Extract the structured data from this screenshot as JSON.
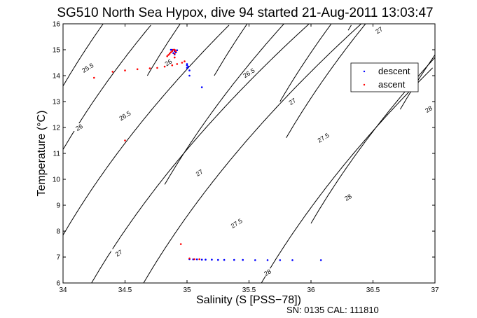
{
  "chart_data": {
    "type": "scatter",
    "title": "SG510 North Sea Hypox, dive 94 started 21-Aug-2011 13:03:47",
    "xlabel": "Salinity (S [PSS−78])",
    "ylabel": "Temperature (°C)",
    "footer": "SN: 0135  CAL: 111810",
    "xlim": [
      34,
      37
    ],
    "ylim": [
      6,
      16
    ],
    "xticks": [
      "34",
      "34.5",
      "35",
      "35.5",
      "36",
      "36.5",
      "37"
    ],
    "yticks": [
      "6",
      "7",
      "8",
      "9",
      "10",
      "11",
      "12",
      "13",
      "14",
      "15",
      "16"
    ],
    "grid": false,
    "legend_position": "right",
    "series": [
      {
        "name": "descent",
        "color": "#0000ff",
        "marker": "dot",
        "points": [
          [
            34.88,
            15.0
          ],
          [
            34.9,
            15.0
          ],
          [
            34.92,
            14.98
          ],
          [
            34.9,
            14.95
          ],
          [
            34.91,
            14.9
          ],
          [
            34.89,
            14.87
          ],
          [
            34.9,
            14.82
          ],
          [
            34.87,
            15.0
          ],
          [
            35.0,
            14.45
          ],
          [
            35.0,
            14.4
          ],
          [
            35.01,
            14.35
          ],
          [
            35.0,
            14.3
          ],
          [
            35.02,
            14.2
          ],
          [
            35.02,
            14.0
          ],
          [
            35.12,
            13.55
          ],
          [
            35.02,
            6.92
          ],
          [
            35.05,
            6.91
          ],
          [
            35.08,
            6.91
          ],
          [
            35.12,
            6.9
          ],
          [
            35.15,
            6.9
          ],
          [
            35.2,
            6.9
          ],
          [
            35.25,
            6.89
          ],
          [
            35.3,
            6.89
          ],
          [
            35.38,
            6.89
          ],
          [
            35.45,
            6.89
          ],
          [
            35.55,
            6.88
          ],
          [
            35.65,
            6.88
          ],
          [
            35.75,
            6.88
          ],
          [
            35.85,
            6.88
          ],
          [
            36.08,
            6.88
          ]
        ]
      },
      {
        "name": "ascent",
        "color": "#ff0000",
        "marker": "dot",
        "points": [
          [
            34.25,
            13.92
          ],
          [
            34.4,
            14.15
          ],
          [
            34.5,
            14.2
          ],
          [
            34.6,
            14.25
          ],
          [
            34.7,
            14.28
          ],
          [
            34.76,
            14.3
          ],
          [
            34.82,
            14.35
          ],
          [
            34.88,
            14.4
          ],
          [
            34.92,
            14.45
          ],
          [
            34.96,
            14.5
          ],
          [
            34.98,
            14.55
          ],
          [
            34.84,
            14.75
          ],
          [
            34.85,
            14.8
          ],
          [
            34.86,
            14.85
          ],
          [
            34.87,
            14.9
          ],
          [
            34.88,
            14.95
          ],
          [
            34.89,
            15.0
          ],
          [
            34.9,
            15.0
          ],
          [
            34.91,
            14.95
          ],
          [
            34.9,
            14.85
          ],
          [
            34.9,
            14.7
          ],
          [
            34.5,
            11.5
          ],
          [
            34.95,
            7.5
          ],
          [
            35.02,
            6.95
          ],
          [
            35.06,
            6.92
          ],
          [
            35.1,
            6.92
          ]
        ]
      }
    ],
    "contours": [
      {
        "label": "25.5",
        "s0": 34.0,
        "t0": 13.6,
        "t1": 16.0,
        "label_s": 34.2,
        "label_t": 14.3
      },
      {
        "label": "26",
        "s0": 34.0,
        "t0": 11.15,
        "t1": 16.0,
        "label_s": 34.13,
        "label_t": 12.0
      },
      {
        "label": "26",
        "s0": 34.68,
        "t0": 14.0,
        "t1": 16.0,
        "label_s": 34.85,
        "label_t": 14.5
      },
      {
        "label": "26.5",
        "s0": 34.0,
        "t0": 7.85,
        "t1": 16.0,
        "label_s": 34.5,
        "label_t": 12.45
      },
      {
        "label": "26.5",
        "s0": 35.22,
        "t0": 14.0,
        "t1": 16.0,
        "label_s": 35.5,
        "label_t": 14.1
      },
      {
        "label": "27",
        "s0": 34.23,
        "t0": 6.0,
        "t1": 16.0,
        "label_s": 34.45,
        "label_t": 7.15
      },
      {
        "label": "27",
        "s0": 34.82,
        "t0": 9.8,
        "t1": 16.0,
        "label_s": 35.1,
        "label_t": 10.25
      },
      {
        "label": "27",
        "s0": 35.75,
        "t0": 13.0,
        "t1": 16.0,
        "label_s": 35.85,
        "label_t": 13.0
      },
      {
        "label": "27",
        "s0": 36.3,
        "t0": 15.75,
        "t1": 16.0,
        "label_s": 36.55,
        "label_t": 15.75
      },
      {
        "label": "27.5",
        "s0": 34.65,
        "t0": 6.0,
        "t1": 16.0,
        "label_s": 35.4,
        "label_t": 8.3
      },
      {
        "label": "27.5",
        "s0": 35.8,
        "t0": 11.6,
        "t1": 16.0,
        "label_s": 36.1,
        "label_t": 11.6
      },
      {
        "label": "28",
        "s0": 35.6,
        "t0": 6.0,
        "t1": 16.0,
        "label_s": 35.65,
        "label_t": 6.4
      },
      {
        "label": "28",
        "s0": 36.0,
        "t0": 8.3,
        "t1": 16.0,
        "label_s": 36.3,
        "label_t": 9.3
      },
      {
        "label": "28",
        "s0": 36.72,
        "t0": 12.7,
        "t1": 16.0,
        "label_s": 36.95,
        "label_t": 12.7
      }
    ]
  }
}
